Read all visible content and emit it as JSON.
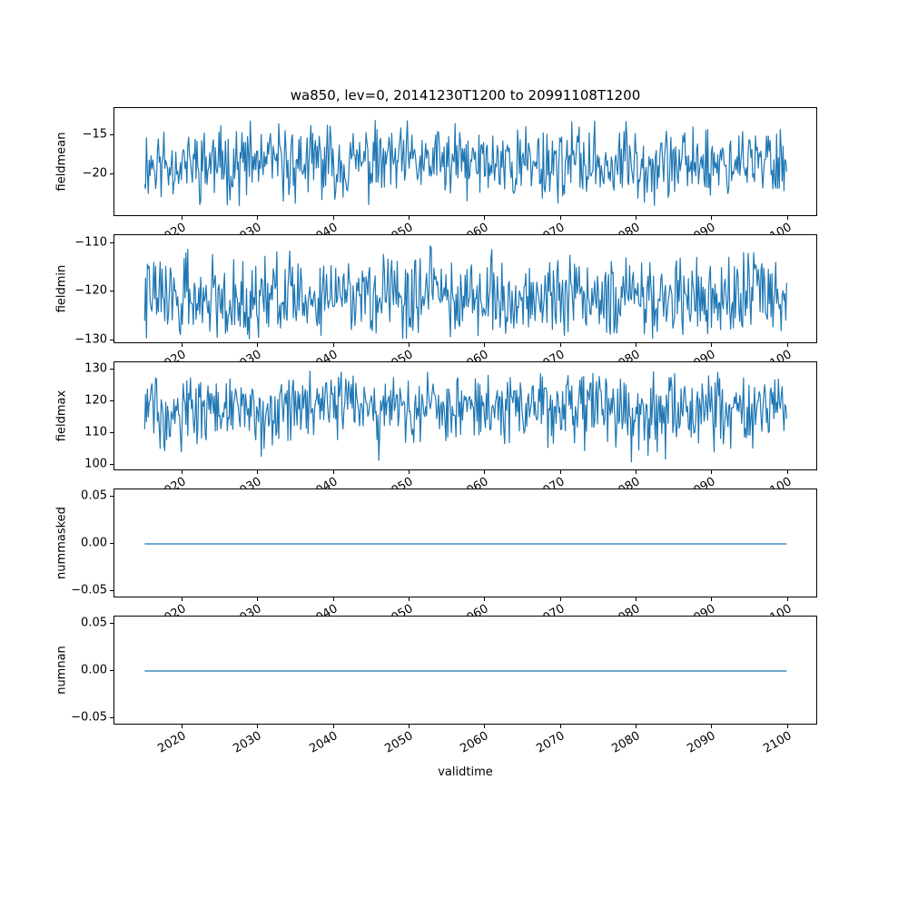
{
  "figure": {
    "title": "wa850, lev=0, 20141230T1200 to 20991108T1200",
    "xlabel": "validtime",
    "line_color": "#1f77b4",
    "background": "#ffffff",
    "text_color": "#000000"
  },
  "chart_data": {
    "type": "line",
    "title": "wa850, lev=0, 20141230T1200 to 20991108T1200",
    "xlabel": "validtime",
    "grid": false,
    "legend": "none",
    "xlim": [
      2011,
      2104
    ],
    "xticks": [
      2020,
      2030,
      2040,
      2050,
      2060,
      2070,
      2080,
      2090,
      2100
    ],
    "x_start": 2014.99,
    "x_end": 2099.85,
    "panels": [
      {
        "ylabel": "fieldmean",
        "ylim": [
          -25.5,
          -11.5
        ],
        "yticks": [
          -15,
          -20
        ],
        "ytick_decimals": 0,
        "series": {
          "kind": "noise",
          "n_points": 700,
          "min": -24.3,
          "max": -12.8,
          "mean": -17.8,
          "skew": 1.0,
          "seed": 11
        }
      },
      {
        "ylabel": "fieldmin",
        "ylim": [
          -130.7,
          -108.4
        ],
        "yticks": [
          -110,
          -120,
          -130
        ],
        "ytick_decimals": 0,
        "series": {
          "kind": "noise",
          "n_points": 700,
          "min": -130.2,
          "max": -110.0,
          "mean": -123.0,
          "skew": 1.15,
          "seed": 22
        }
      },
      {
        "ylabel": "fieldmax",
        "ylim": [
          98.0,
          132.3
        ],
        "yticks": [
          100,
          110,
          120,
          130
        ],
        "ytick_decimals": 0,
        "series": {
          "kind": "noise",
          "n_points": 700,
          "min": 100.2,
          "max": 130.5,
          "mean": 119.0,
          "skew": 0.75,
          "seed": 33
        }
      },
      {
        "ylabel": "nummasked",
        "ylim": [
          -0.058,
          0.058
        ],
        "yticks": [
          0.05,
          0.0,
          -0.05
        ],
        "ytick_decimals": 2,
        "series": {
          "kind": "constant",
          "value": 0.0
        }
      },
      {
        "ylabel": "numnan",
        "ylim": [
          -0.058,
          0.058
        ],
        "yticks": [
          0.05,
          0.0,
          -0.05
        ],
        "ytick_decimals": 2,
        "series": {
          "kind": "constant",
          "value": 0.0
        }
      }
    ]
  }
}
